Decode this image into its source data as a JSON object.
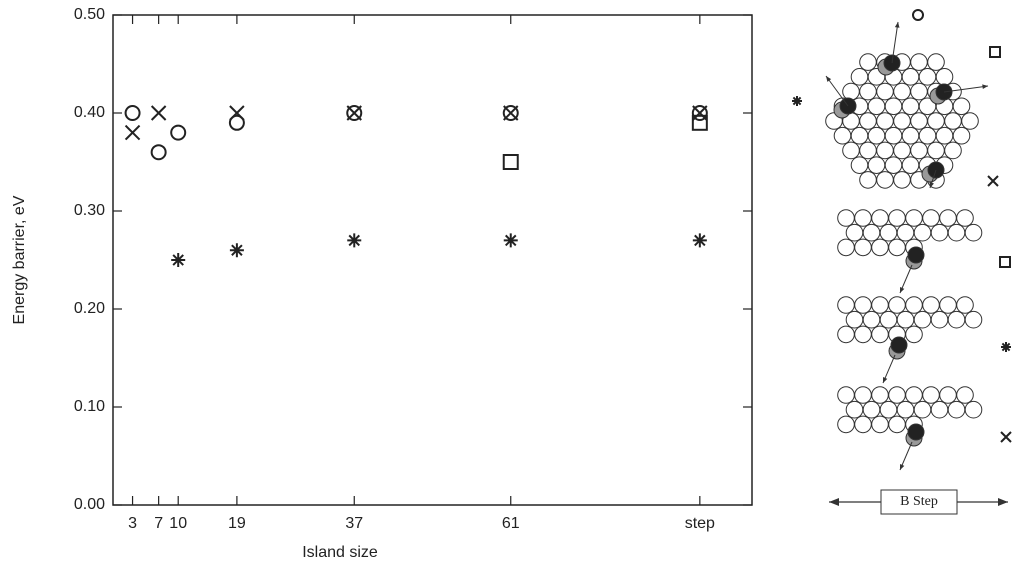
{
  "chart_data": {
    "type": "scatter",
    "x_label": "Island size",
    "y_label": "Energy barrier, eV",
    "xlim": [
      0,
      98
    ],
    "ylim": [
      0,
      0.5
    ],
    "xticks": [
      3,
      7,
      10,
      19,
      37,
      61,
      {
        "value": 90,
        "label": "step"
      }
    ],
    "yticks": [
      {
        "value": 0,
        "label": "0.00"
      },
      {
        "value": 0.1,
        "label": "0.10"
      },
      {
        "value": 0.2,
        "label": "0.20"
      },
      {
        "value": 0.3,
        "label": "0.30"
      },
      {
        "value": 0.4,
        "label": "0.40"
      },
      {
        "value": 0.5,
        "label": "0.50"
      }
    ],
    "color": "#222222",
    "series": [
      {
        "marker": "circle",
        "x": [
          3,
          7,
          10,
          19,
          37,
          61,
          90
        ],
        "values": [
          0.4,
          0.36,
          0.38,
          0.39,
          0.4,
          0.4,
          0.4
        ]
      },
      {
        "marker": "cross",
        "x": [
          3,
          7,
          19,
          37,
          61,
          90
        ],
        "values": [
          0.38,
          0.4,
          0.4,
          0.4,
          0.4,
          0.4
        ]
      },
      {
        "marker": "square",
        "x": [
          61,
          90
        ],
        "values": [
          0.35,
          0.39
        ]
      },
      {
        "marker": "star",
        "x": [
          10,
          19,
          37,
          61,
          90
        ],
        "values": [
          0.25,
          0.26,
          0.27,
          0.27,
          0.27
        ]
      }
    ]
  },
  "diagram": {
    "label": "B Step"
  }
}
